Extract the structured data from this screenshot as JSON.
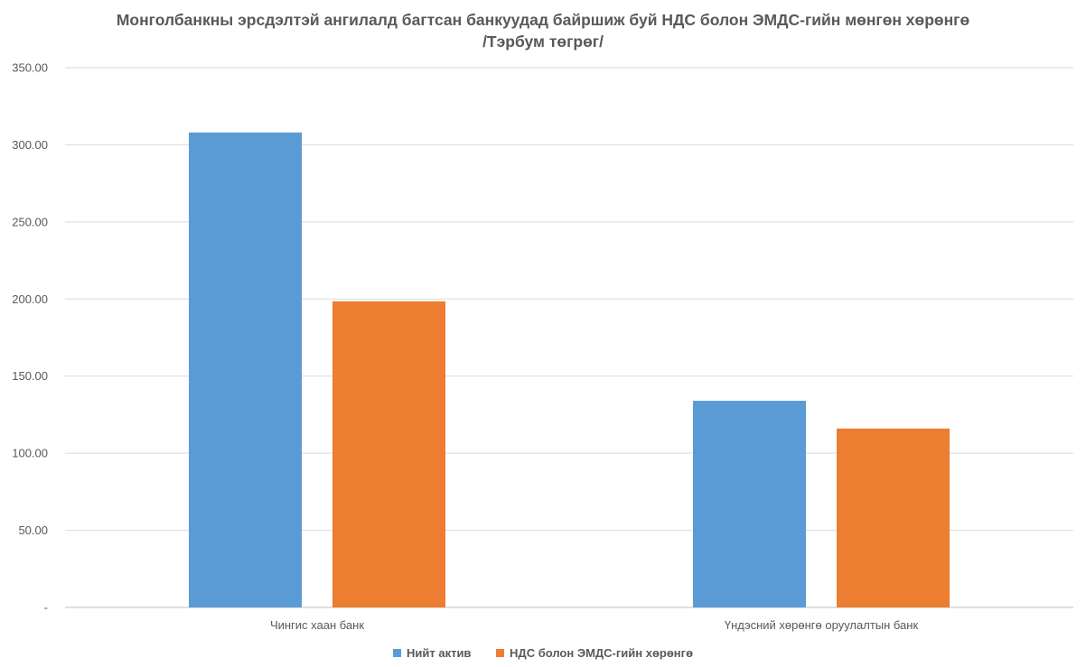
{
  "chart_data": {
    "type": "bar",
    "title_line1": "Монголбанкны эрсдэлтэй ангилалд багтсан банкуудад байршиж буй НДС болон ЭМДС-гийн мөнгөн хөрөнгө",
    "title_line2": "/Тэрбум төгрөг/",
    "categories": [
      "Чингис хаан банк",
      "Үндэсний хөрөнгө оруулалтын банк"
    ],
    "series": [
      {
        "name": "Нийт актив",
        "color": "#5B9BD5",
        "values": [
          308.0,
          134.0
        ]
      },
      {
        "name": "НДС болон ЭМДС-гийн хөрөнгө",
        "color": "#ED7D31",
        "values": [
          198.5,
          116.0
        ]
      }
    ],
    "ylim": [
      0,
      350
    ],
    "yticks": [
      0,
      50,
      100,
      150,
      200,
      250,
      300,
      350
    ],
    "ytick_labels": [
      "-",
      "50.00",
      "100.00",
      "150.00",
      "200.00",
      "250.00",
      "300.00",
      "350.00"
    ],
    "grid": true,
    "legend_position": "bottom"
  }
}
